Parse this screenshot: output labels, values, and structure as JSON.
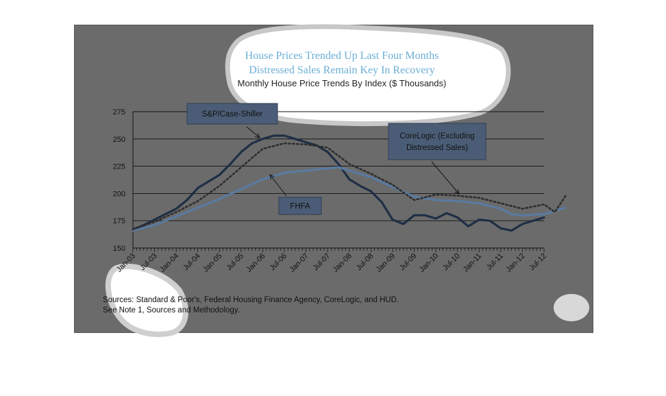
{
  "chart_data": {
    "type": "line",
    "title_lines": [
      "House Prices Trended Up Last Four Months",
      "Distressed Sales Remain Key In Recovery"
    ],
    "subtitle": "Monthly House Price Trends By Index ($ Thousands)",
    "xlabel": "",
    "ylabel": "",
    "ylim": [
      150,
      275
    ],
    "yticks": [
      150,
      175,
      200,
      225,
      250,
      275
    ],
    "x_tick_labels": [
      "Jan-03",
      "Jul-03",
      "Jan-04",
      "Jul-04",
      "Jan-05",
      "Jul-05",
      "Jan-06",
      "Jul-06",
      "Jan-07",
      "Jul-07",
      "Jan-08",
      "Jul-08",
      "Jan-09",
      "Jul-09",
      "Jan-10",
      "Jul-10",
      "Jan-11",
      "Jul-11",
      "Jan-12",
      "Jul-12"
    ],
    "grid": true,
    "series": [
      {
        "name": "S&P/Case-Shiller",
        "color": "#1f2e45",
        "style": "solid",
        "points": [
          [
            0,
            167
          ],
          [
            3,
            171
          ],
          [
            6,
            176
          ],
          [
            9,
            181
          ],
          [
            12,
            186
          ],
          [
            15,
            194
          ],
          [
            18,
            205
          ],
          [
            21,
            211
          ],
          [
            24,
            217
          ],
          [
            27,
            227
          ],
          [
            30,
            238
          ],
          [
            33,
            246
          ],
          [
            36,
            250
          ],
          [
            39,
            253
          ],
          [
            42,
            253
          ],
          [
            45,
            250
          ],
          [
            48,
            247
          ],
          [
            51,
            244
          ],
          [
            54,
            238
          ],
          [
            57,
            227
          ],
          [
            60,
            213
          ],
          [
            63,
            207
          ],
          [
            66,
            202
          ],
          [
            69,
            192
          ],
          [
            72,
            176
          ],
          [
            75,
            172
          ],
          [
            78,
            180
          ],
          [
            81,
            180
          ],
          [
            84,
            177
          ],
          [
            87,
            182
          ],
          [
            90,
            178
          ],
          [
            93,
            170
          ],
          [
            96,
            176
          ],
          [
            99,
            175
          ],
          [
            102,
            168
          ],
          [
            105,
            166
          ],
          [
            108,
            172
          ],
          [
            114,
            178
          ]
        ]
      },
      {
        "name": "FHFA",
        "color": "#5a7aa0",
        "style": "solid",
        "points": [
          [
            0,
            166
          ],
          [
            6,
            171
          ],
          [
            12,
            179
          ],
          [
            18,
            187
          ],
          [
            24,
            195
          ],
          [
            30,
            204
          ],
          [
            36,
            213
          ],
          [
            42,
            219
          ],
          [
            48,
            221
          ],
          [
            54,
            223
          ],
          [
            57,
            224
          ],
          [
            60,
            221
          ],
          [
            66,
            215
          ],
          [
            72,
            206
          ],
          [
            78,
            197
          ],
          [
            84,
            194
          ],
          [
            90,
            193
          ],
          [
            96,
            191
          ],
          [
            102,
            186
          ],
          [
            105,
            181
          ],
          [
            108,
            180
          ],
          [
            114,
            181
          ],
          [
            120,
            187
          ]
        ]
      },
      {
        "name": "CoreLogic (Excluding Distressed Sales)",
        "color": "#2e2e2e",
        "style": "dotted",
        "points": [
          [
            0,
            167
          ],
          [
            6,
            174
          ],
          [
            12,
            183
          ],
          [
            18,
            193
          ],
          [
            24,
            207
          ],
          [
            30,
            224
          ],
          [
            36,
            241
          ],
          [
            42,
            246
          ],
          [
            48,
            245
          ],
          [
            54,
            242
          ],
          [
            60,
            227
          ],
          [
            66,
            218
          ],
          [
            72,
            208
          ],
          [
            78,
            194
          ],
          [
            84,
            199
          ],
          [
            90,
            198
          ],
          [
            96,
            196
          ],
          [
            102,
            191
          ],
          [
            108,
            186
          ],
          [
            114,
            190
          ],
          [
            117,
            183
          ],
          [
            120,
            198
          ]
        ]
      }
    ],
    "annotations": [
      {
        "series": "S&P/Case-Shiller",
        "lines": [
          "S&P/Case-Shiller"
        ]
      },
      {
        "series": "CoreLogic (Excluding Distressed Sales)",
        "lines": [
          "CoreLogic (Excluding",
          "Distressed Sales)"
        ]
      },
      {
        "series": "FHFA",
        "lines": [
          "FHFA"
        ]
      }
    ],
    "sources": [
      "Sources:  Standard & Poor's, Federal Housing Finance Agency, CoreLogic, and HUD.",
      "See Note 1, Sources and Methodology."
    ]
  }
}
